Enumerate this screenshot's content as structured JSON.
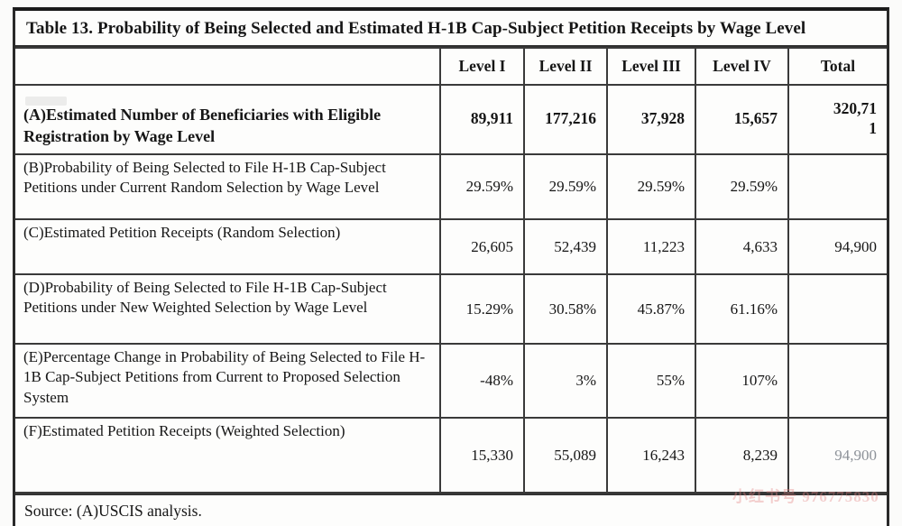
{
  "title": "Table 13. Probability of Being Selected and Estimated H-1B Cap-Subject Petition Receipts by Wage Level",
  "source": "Source: (A)USCIS analysis.",
  "watermark": "小红书号 976775830",
  "table": {
    "columns": [
      "",
      "Level I",
      "Level II",
      "Level III",
      "Level IV",
      "Total"
    ],
    "rows": [
      {
        "label": "(A)Estimated Number of Beneficiaries with Eligible Registration by Wage Level",
        "values": [
          "89,911",
          "177,216",
          "37,928",
          "15,657",
          "320,711"
        ]
      },
      {
        "label": "(B)Probability of Being Selected to File H-1B Cap-Subject Petitions under Current Random Selection by Wage Level",
        "values": [
          "29.59%",
          "29.59%",
          "29.59%",
          "29.59%",
          ""
        ]
      },
      {
        "label": "(C)Estimated Petition Receipts (Random Selection)",
        "values": [
          "26,605",
          "52,439",
          "11,223",
          "4,633",
          "94,900"
        ]
      },
      {
        "label": "(D)Probability of Being Selected to File H-1B Cap-Subject Petitions under New Weighted Selection by Wage Level",
        "values": [
          "15.29%",
          "30.58%",
          "45.87%",
          "61.16%",
          ""
        ]
      },
      {
        "label": "(E)Percentage Change in Probability of Being Selected to File H-1B Cap-Subject Petitions from Current to Proposed Selection System",
        "values": [
          "-48%",
          "3%",
          "55%",
          "107%",
          ""
        ]
      },
      {
        "label": "(F)Estimated Petition Receipts (Weighted Selection)",
        "values": [
          "15,330",
          "55,089",
          "16,243",
          "8,239",
          "94,900"
        ]
      }
    ]
  }
}
